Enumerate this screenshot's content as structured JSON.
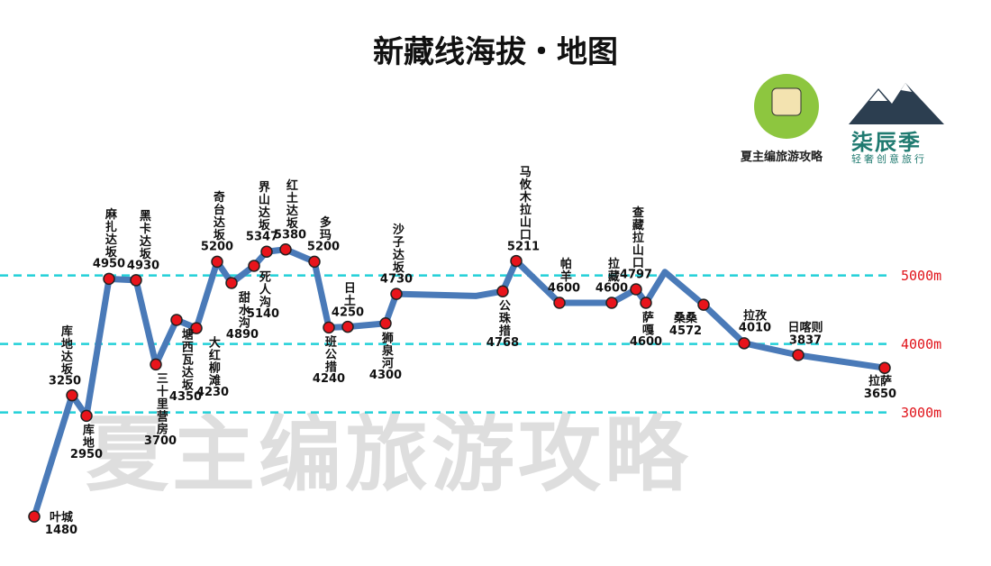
{
  "chart_data": {
    "type": "line",
    "title": "新藏线海拔・地图",
    "categories": [
      "叶城",
      "库地达坂",
      "库地",
      "麻扎达坂",
      "黑卡达坂",
      "三十里营房",
      "塘西瓦达坂",
      "大红柳滩",
      "奇台达坂",
      "甜水沟",
      "死人沟",
      "界山达坂",
      "红土达坂",
      "多玛",
      "班公措",
      "日土",
      "狮泉河",
      "沙子达坂",
      null,
      "公珠措",
      "马攸木拉山口",
      "帕羊",
      "拉藏",
      "查藏拉山口",
      "萨嘎",
      null,
      "桑桑",
      "拉孜",
      "日喀则",
      "拉萨"
    ],
    "values": [
      1480,
      3250,
      2950,
      4950,
      4930,
      3700,
      4350,
      4230,
      5200,
      4890,
      5140,
      5347,
      5380,
      5200,
      4240,
      4250,
      4300,
      4730,
      4700,
      4768,
      5211,
      4600,
      4600,
      4797,
      4600,
      5050,
      4572,
      4010,
      3837,
      3650
    ],
    "color": "#4a7ab8",
    "marker_color": "#e8141b",
    "ylim": [
      1100,
      5600
    ],
    "yticks": [
      {
        "value": 3000,
        "label": "3000m"
      },
      {
        "value": 4000,
        "label": "4000m"
      },
      {
        "value": 5000,
        "label": "5000m"
      }
    ],
    "grid": true
  },
  "branding": {
    "logo_left": "夏主编旅游攻略",
    "logo_right": "柒辰季",
    "logo_right_sub": "轻奢创意旅行",
    "watermark": "夏主编旅游攻略"
  }
}
